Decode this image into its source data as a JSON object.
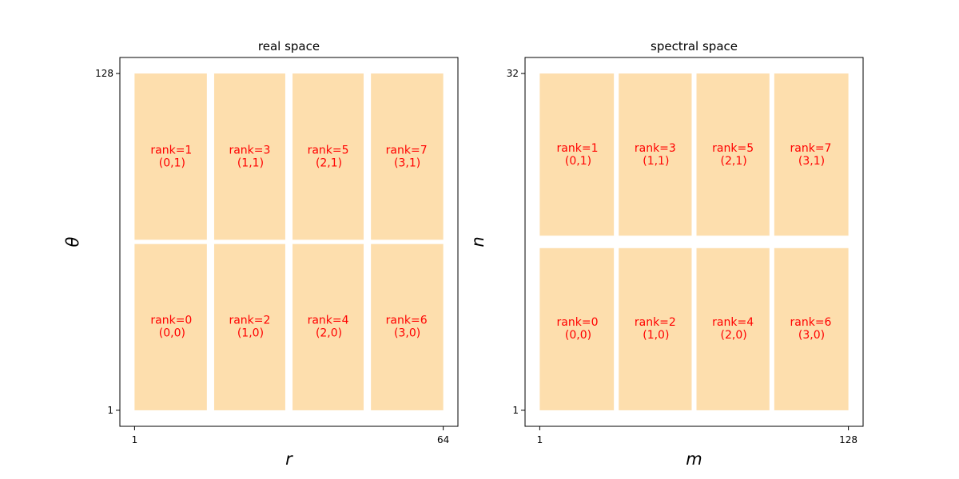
{
  "chart_data": [
    {
      "type": "heatmap",
      "title": "real space",
      "xlabel": "r",
      "ylabel": "θ",
      "xlim": [
        1,
        64
      ],
      "ylim": [
        1,
        128
      ],
      "xticks": [
        1,
        64
      ],
      "yticks": [
        1,
        128
      ],
      "x_tick_labels": [
        "1",
        "64"
      ],
      "y_tick_labels": [
        "1",
        "128"
      ],
      "grid": false,
      "block_color": "#fddead",
      "label_color": "#ff0000",
      "blocks": [
        {
          "label": "rank=0\n(0,0)",
          "x": [
            1,
            16
          ],
          "y": [
            1,
            64
          ]
        },
        {
          "label": "rank=2\n(1,0)",
          "x": [
            17,
            32
          ],
          "y": [
            1,
            64
          ]
        },
        {
          "label": "rank=4\n(2,0)",
          "x": [
            33,
            48
          ],
          "y": [
            1,
            64
          ]
        },
        {
          "label": "rank=6\n(3,0)",
          "x": [
            49,
            64
          ],
          "y": [
            1,
            64
          ]
        },
        {
          "label": "rank=1\n(0,1)",
          "x": [
            1,
            16
          ],
          "y": [
            65,
            128
          ]
        },
        {
          "label": "rank=3\n(1,1)",
          "x": [
            17,
            32
          ],
          "y": [
            65,
            128
          ]
        },
        {
          "label": "rank=5\n(2,1)",
          "x": [
            33,
            48
          ],
          "y": [
            65,
            128
          ]
        },
        {
          "label": "rank=7\n(3,1)",
          "x": [
            49,
            64
          ],
          "y": [
            65,
            128
          ]
        }
      ]
    },
    {
      "type": "heatmap",
      "title": "spectral space",
      "xlabel": "m",
      "ylabel": "n",
      "xlim": [
        1,
        128
      ],
      "ylim": [
        1,
        32
      ],
      "xticks": [
        1,
        128
      ],
      "yticks": [
        1,
        32
      ],
      "x_tick_labels": [
        "1",
        "128"
      ],
      "y_tick_labels": [
        "1",
        "32"
      ],
      "grid": false,
      "block_color": "#fddead",
      "label_color": "#ff0000",
      "blocks": [
        {
          "label": "rank=0\n(0,0)",
          "x": [
            1,
            32
          ],
          "y": [
            1,
            16
          ]
        },
        {
          "label": "rank=2\n(1,0)",
          "x": [
            33,
            64
          ],
          "y": [
            1,
            16
          ]
        },
        {
          "label": "rank=4\n(2,0)",
          "x": [
            65,
            96
          ],
          "y": [
            1,
            16
          ]
        },
        {
          "label": "rank=6\n(3,0)",
          "x": [
            97,
            128
          ],
          "y": [
            1,
            16
          ]
        },
        {
          "label": "rank=1\n(0,1)",
          "x": [
            1,
            32
          ],
          "y": [
            17,
            32
          ]
        },
        {
          "label": "rank=3\n(1,1)",
          "x": [
            33,
            64
          ],
          "y": [
            17,
            32
          ]
        },
        {
          "label": "rank=5\n(2,1)",
          "x": [
            65,
            96
          ],
          "y": [
            17,
            32
          ]
        },
        {
          "label": "rank=7\n(3,1)",
          "x": [
            97,
            128
          ],
          "y": [
            17,
            32
          ]
        }
      ]
    }
  ]
}
